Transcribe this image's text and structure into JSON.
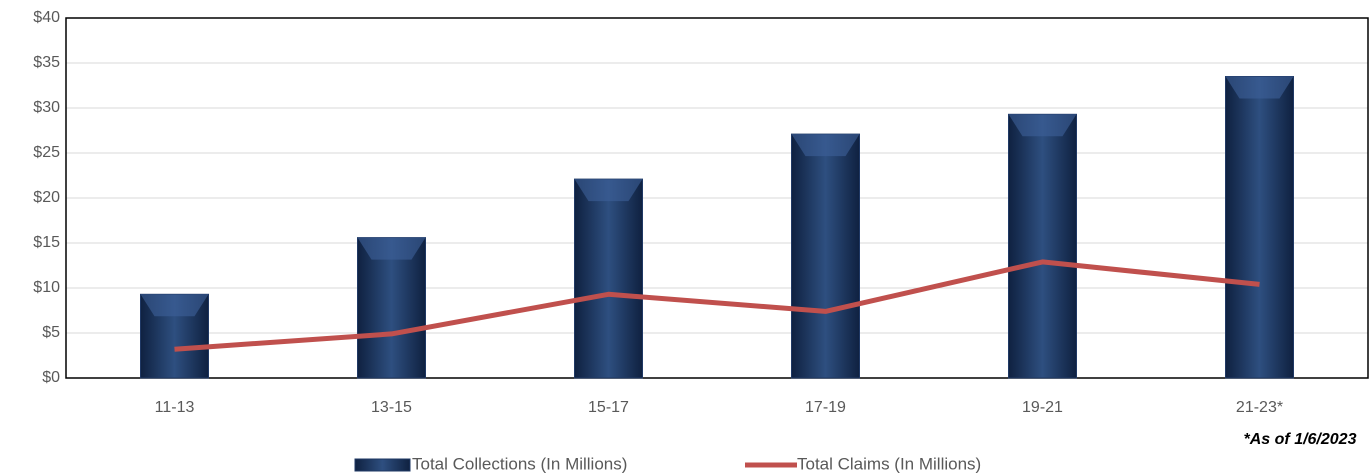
{
  "chart_data": {
    "type": "bar",
    "categories": [
      "11-13",
      "13-15",
      "15-17",
      "17-19",
      "19-21",
      "21-23*"
    ],
    "series": [
      {
        "name": "Total Collections (In Millions)",
        "type": "bar",
        "color": "#1f3864",
        "values": [
          9.3,
          15.6,
          22.1,
          27.1,
          29.3,
          33.5
        ]
      },
      {
        "name": "Total Claims (In Millions)",
        "type": "line",
        "color": "#c0504d",
        "values": [
          3.2,
          4.9,
          9.3,
          7.4,
          12.9,
          10.4
        ]
      }
    ],
    "ylim": [
      0,
      40
    ],
    "yticks": [
      {
        "value": 0,
        "label": "$0"
      },
      {
        "value": 5,
        "label": "$5"
      },
      {
        "value": 10,
        "label": "$10"
      },
      {
        "value": 15,
        "label": "$15"
      },
      {
        "value": 20,
        "label": "$20"
      },
      {
        "value": 25,
        "label": "$25"
      },
      {
        "value": 30,
        "label": "$30"
      },
      {
        "value": 35,
        "label": "$35"
      },
      {
        "value": 40,
        "label": "$40"
      }
    ],
    "grid": true,
    "legend": "bottom",
    "annotation": "*As of 1/6/2023"
  }
}
